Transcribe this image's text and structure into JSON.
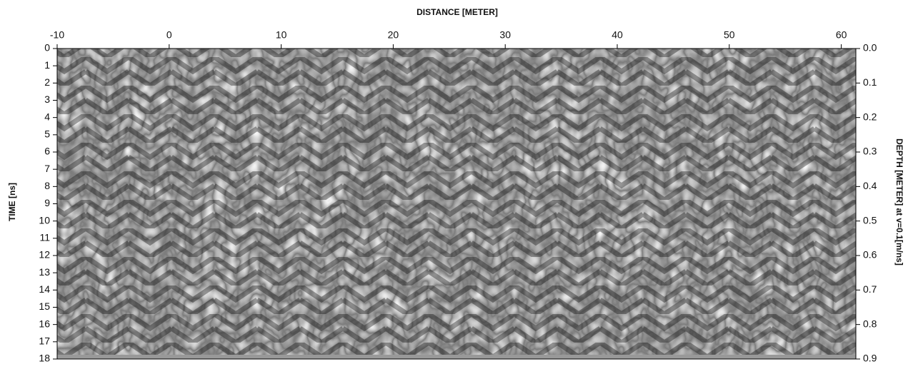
{
  "chart_data": {
    "type": "radargram",
    "xlabel": "DISTANCE [METER]",
    "ylabel": "TIME [ns]",
    "y2label": "DEPTH [METER] at v=0.1[m/ns]",
    "xlim": [
      -10,
      61.3
    ],
    "xticks": [
      -10,
      0,
      10,
      20,
      30,
      40,
      50,
      60
    ],
    "ylim": [
      0,
      18
    ],
    "yticks": [
      0,
      1,
      2,
      3,
      4,
      5,
      6,
      7,
      8,
      9,
      10,
      11,
      12,
      13,
      14,
      15,
      16,
      17,
      18
    ],
    "y2lim": [
      0,
      0.9
    ],
    "y2ticks": [
      {
        "value": 0,
        "label": "0.0"
      },
      0.1,
      0.2,
      0.3,
      0.4,
      0.5,
      0.6,
      0.7,
      0.8,
      0.9
    ]
  }
}
